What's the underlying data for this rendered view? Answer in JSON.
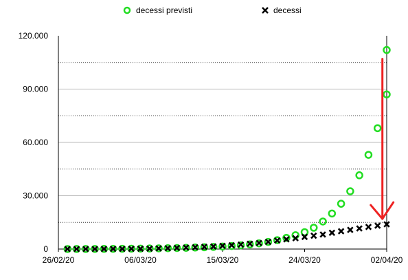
{
  "chart_data": {
    "type": "scatter",
    "x_label": "",
    "y_label": "",
    "x_ticks": [
      "26/02/20",
      "06/03/20",
      "15/03/20",
      "24/03/20",
      "02/04/20"
    ],
    "y_ticks": [
      "0",
      "30.000",
      "60.000",
      "90.000",
      "120.000"
    ],
    "ylim": [
      0,
      120000
    ],
    "xlim": [
      "2020-02-26",
      "2020-04-02"
    ],
    "grid": {
      "solid": [
        30000,
        60000,
        90000
      ],
      "dotted": [
        15000,
        45000,
        75000,
        105000
      ]
    },
    "legend_position": "top",
    "series": [
      {
        "name": "decessi previsti",
        "marker": "circle-open",
        "color": "#22dd22",
        "x": [
          "2020-02-27",
          "2020-02-28",
          "2020-02-29",
          "2020-03-01",
          "2020-03-02",
          "2020-03-03",
          "2020-03-04",
          "2020-03-05",
          "2020-03-06",
          "2020-03-07",
          "2020-03-08",
          "2020-03-09",
          "2020-03-10",
          "2020-03-11",
          "2020-03-12",
          "2020-03-13",
          "2020-03-14",
          "2020-03-15",
          "2020-03-16",
          "2020-03-17",
          "2020-03-18",
          "2020-03-19",
          "2020-03-20",
          "2020-03-21",
          "2020-03-22",
          "2020-03-23",
          "2020-03-24",
          "2020-03-25",
          "2020-03-26",
          "2020-03-27",
          "2020-03-28",
          "2020-03-29",
          "2020-03-30",
          "2020-03-31",
          "2020-04-01",
          "2020-04-02"
        ],
        "y": [
          20,
          30,
          40,
          60,
          80,
          110,
          150,
          200,
          250,
          320,
          400,
          500,
          600,
          700,
          850,
          1000,
          1200,
          1400,
          1700,
          2100,
          2600,
          3200,
          4000,
          5000,
          6300,
          7800,
          9500,
          12000,
          15500,
          20000,
          25500,
          32500,
          41500,
          53000,
          68000,
          87000
        ]
      },
      {
        "name": "decessi",
        "marker": "x",
        "color": "#000000",
        "x": [
          "2020-02-27",
          "2020-02-28",
          "2020-02-29",
          "2020-03-01",
          "2020-03-02",
          "2020-03-03",
          "2020-03-04",
          "2020-03-05",
          "2020-03-06",
          "2020-03-07",
          "2020-03-08",
          "2020-03-09",
          "2020-03-10",
          "2020-03-11",
          "2020-03-12",
          "2020-03-13",
          "2020-03-14",
          "2020-03-15",
          "2020-03-16",
          "2020-03-17",
          "2020-03-18",
          "2020-03-19",
          "2020-03-20",
          "2020-03-21",
          "2020-03-22",
          "2020-03-23",
          "2020-03-24",
          "2020-03-25",
          "2020-03-26",
          "2020-03-27",
          "2020-03-28",
          "2020-03-29",
          "2020-03-30",
          "2020-03-31",
          "2020-04-01",
          "2020-04-02"
        ],
        "y": [
          17,
          21,
          29,
          34,
          52,
          79,
          107,
          148,
          197,
          233,
          366,
          463,
          631,
          827,
          1016,
          1266,
          1441,
          1809,
          2158,
          2503,
          2978,
          3405,
          4032,
          4825,
          5476,
          6077,
          6820,
          7503,
          8165,
          9134,
          10023,
          10779,
          11591,
          12428,
          13155,
          13915
        ]
      }
    ],
    "extra_points": [
      {
        "x": "2020-04-02",
        "y": 112000,
        "series": "decessi previsti"
      }
    ],
    "annotation": {
      "type": "arrow",
      "color": "#ee2222",
      "x": "2020-04-01",
      "from_y": 107000,
      "to_y": 17000
    }
  }
}
